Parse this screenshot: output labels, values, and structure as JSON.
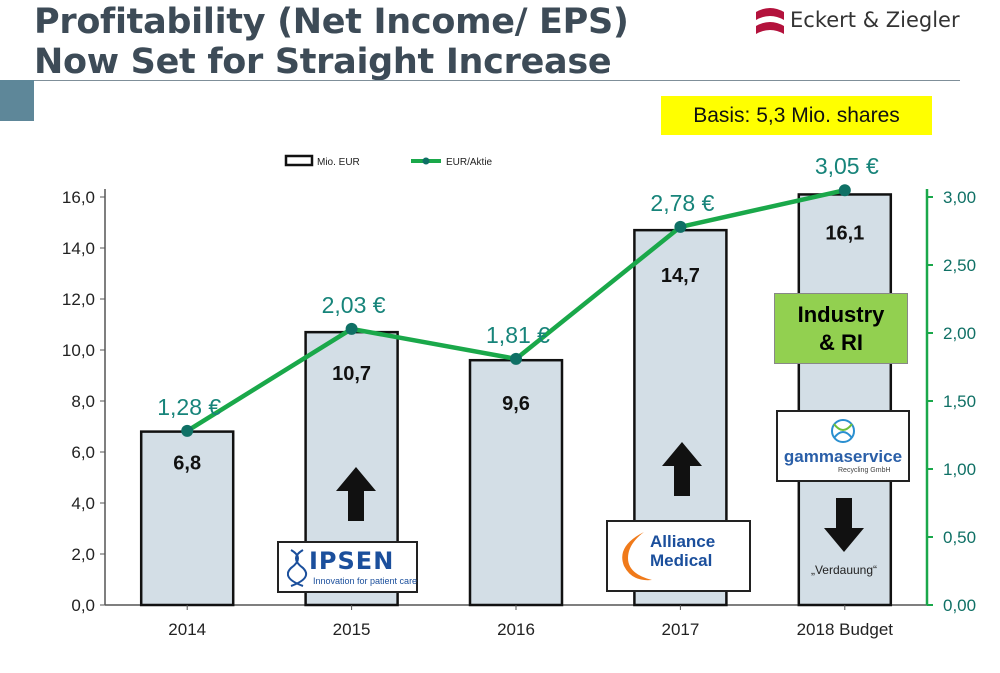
{
  "title_line1": "Profitability (Net Income/ EPS)",
  "title_line2": "Now Set for Straight Increase",
  "logo_text": "Eckert & Ziegler",
  "basis": "Basis: 5,3 Mio. shares",
  "chart_data": {
    "type": "bar+line",
    "categories": [
      "2014",
      "2015",
      "2016",
      "2017",
      "2018 Budget"
    ],
    "series": [
      {
        "name": "Mio. EUR",
        "type": "bar",
        "axis": "left",
        "values": [
          6.8,
          10.7,
          9.6,
          14.7,
          16.1
        ],
        "labels": [
          "6,8",
          "10,7",
          "9,6",
          "14,7",
          "16,1"
        ]
      },
      {
        "name": "EUR/Aktie",
        "type": "line",
        "axis": "right",
        "values": [
          1.28,
          2.03,
          1.81,
          2.78,
          3.05
        ],
        "labels": [
          "1,28 €",
          "2,03 €",
          "1,81 €",
          "2,78 €",
          "3,05 €"
        ]
      }
    ],
    "y_left": {
      "min": 0,
      "max": 16,
      "ticks": [
        "0,0",
        "2,0",
        "4,0",
        "6,0",
        "8,0",
        "10,0",
        "12,0",
        "14,0",
        "16,0"
      ]
    },
    "y_right": {
      "min": 0,
      "max": 3,
      "ticks": [
        "0,00",
        "0,50",
        "1,00",
        "1,50",
        "2,00",
        "2,50",
        "3,00"
      ]
    },
    "grid": false,
    "legend": "top",
    "colors": {
      "bar_fill": "#d3dee6",
      "bar_border": "#111111",
      "line": "#1aa84a",
      "marker": "#0f7065",
      "eps_label": "#17847a",
      "right_axis": "#1aa84a"
    }
  },
  "annotations": {
    "industry": "Industry & RI",
    "verdauung": "„Verdauung“",
    "ipsen_name": "IPSEN",
    "ipsen_tagline": "Innovation for patient care",
    "alliance_name": "Alliance Medical",
    "gamma_name": "gammaservice",
    "gamma_tagline": "Recycling GmbH",
    "arrows": [
      "up",
      "up",
      "down"
    ]
  }
}
